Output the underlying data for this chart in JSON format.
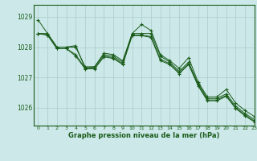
{
  "title": "Graphe pression niveau de la mer (hPa)",
  "bg_color": "#cce8e8",
  "line_color": "#1a5c1a",
  "grid_color": "#aacccc",
  "xlim": [
    -0.5,
    23
  ],
  "ylim": [
    1025.4,
    1029.4
  ],
  "yticks": [
    1026,
    1027,
    1028,
    1029
  ],
  "xticks": [
    0,
    1,
    2,
    3,
    4,
    5,
    6,
    7,
    8,
    9,
    10,
    11,
    12,
    13,
    14,
    15,
    16,
    17,
    18,
    19,
    20,
    21,
    22,
    23
  ],
  "series": [
    [
      1028.9,
      1028.45,
      1028.0,
      1028.0,
      1028.05,
      1027.3,
      1027.35,
      1027.8,
      1027.75,
      1027.55,
      1028.45,
      1028.75,
      1028.55,
      1027.75,
      1027.55,
      1027.3,
      1027.65,
      1026.85,
      1026.35,
      1026.35,
      1026.6,
      1026.15,
      1025.9,
      1025.7
    ],
    [
      1028.45,
      1028.45,
      1028.0,
      1028.0,
      1028.0,
      1027.35,
      1027.35,
      1027.75,
      1027.7,
      1027.5,
      1028.45,
      1028.45,
      1028.45,
      1027.7,
      1027.5,
      1027.2,
      1027.5,
      1026.8,
      1026.3,
      1026.3,
      1026.45,
      1026.05,
      1025.8,
      1025.6
    ],
    [
      1028.45,
      1028.4,
      1027.95,
      1027.95,
      1027.75,
      1027.3,
      1027.3,
      1027.7,
      1027.65,
      1027.45,
      1028.4,
      1028.4,
      1028.35,
      1027.6,
      1027.45,
      1027.15,
      1027.45,
      1026.75,
      1026.25,
      1026.25,
      1026.4,
      1026.0,
      1025.75,
      1025.55
    ],
    [
      1028.45,
      1028.4,
      1027.95,
      1027.95,
      1027.7,
      1027.28,
      1027.28,
      1027.68,
      1027.62,
      1027.42,
      1028.38,
      1028.38,
      1028.32,
      1027.55,
      1027.42,
      1027.12,
      1027.42,
      1026.72,
      1026.22,
      1026.22,
      1026.37,
      1025.97,
      1025.72,
      1025.52
    ]
  ],
  "figsize": [
    3.2,
    2.0
  ],
  "dpi": 100
}
